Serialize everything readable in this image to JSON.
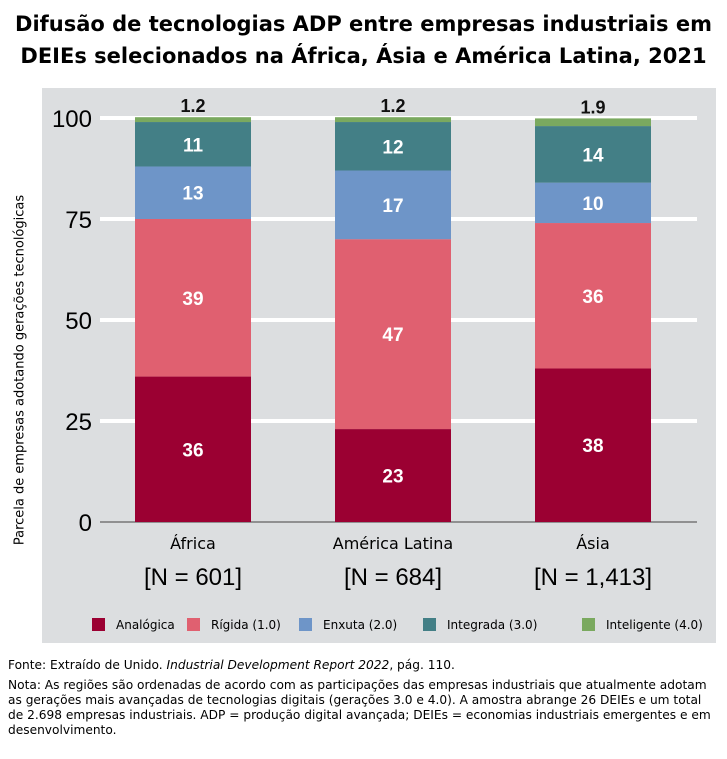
{
  "chart_data": {
    "type": "bar",
    "stacked": true,
    "title": "Difusão de tecnologias ADP entre empresas industriais em DEIEs selecionados na África, Ásia e América Latina, 2021",
    "ylabel": "Parcela de empresas adotando gerações tecnológicas",
    "xlabel": "",
    "ylim": [
      0,
      100
    ],
    "yticks": [
      0,
      25,
      50,
      75,
      100
    ],
    "grid": true,
    "legend_position": "bottom",
    "categories": [
      "África",
      "América Latina",
      "Ásia"
    ],
    "category_n": [
      "[N = 601]",
      "[N = 684]",
      "[N = 1,413]"
    ],
    "series": [
      {
        "name": "Analógica",
        "color": "#9b0032",
        "values": [
          36,
          23,
          38
        ]
      },
      {
        "name": "Rígida (1.0)",
        "color": "#e06070",
        "values": [
          39,
          47,
          36
        ]
      },
      {
        "name": "Enxuta (2.0)",
        "color": "#6e95c8",
        "values": [
          13,
          17,
          10
        ]
      },
      {
        "name": "Integrada (3.0)",
        "color": "#437f86",
        "values": [
          11,
          12,
          14
        ]
      },
      {
        "name": "Inteligente (4.0)",
        "color": "#7aa95f",
        "values": [
          1.2,
          1.2,
          1.9
        ]
      }
    ]
  },
  "notes": {
    "source_prefix": "Fonte: Extraído de Unido. ",
    "source_title": "Industrial Development Report 2022",
    "source_suffix": ", pág. 110.",
    "note": "Nota: As regiões são ordenadas de acordo com as participações das empresas industriais que atualmente adotam as gerações mais avançadas de tecnologias digitais (gerações 3.0 e 4.0). A amostra abrange 26 DEIEs e um total de 2.698 empresas industriais. ADP = produção digital avançada; DEIEs = economias industriais emergentes e em desenvolvimento."
  }
}
